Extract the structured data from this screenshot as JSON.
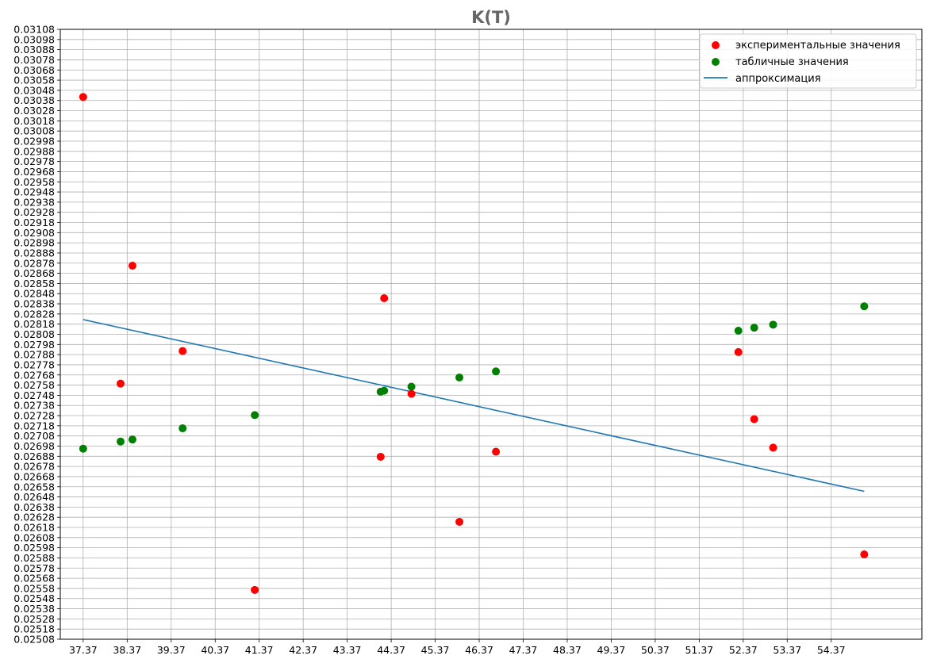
{
  "chart_data": {
    "type": "scatter",
    "title": "K(T)",
    "xlabel": "",
    "ylabel": "",
    "xlim": [
      36.85,
      56.43
    ],
    "ylim": [
      0.02508,
      0.03108
    ],
    "grid": true,
    "legend_position": "upper-right",
    "x_ticks": [
      "37.37",
      "38.37",
      "39.37",
      "40.37",
      "41.37",
      "42.37",
      "43.37",
      "44.37",
      "45.37",
      "46.37",
      "47.37",
      "48.37",
      "49.37",
      "50.37",
      "51.37",
      "52.37",
      "53.37",
      "54.37"
    ],
    "y_ticks": [
      "0.02508",
      "0.02518",
      "0.02528",
      "0.02538",
      "0.02548",
      "0.02558",
      "0.02568",
      "0.02578",
      "0.02588",
      "0.02598",
      "0.02608",
      "0.02618",
      "0.02628",
      "0.02638",
      "0.02648",
      "0.02658",
      "0.02668",
      "0.02678",
      "0.02688",
      "0.02698",
      "0.02708",
      "0.02718",
      "0.02728",
      "0.02738",
      "0.02748",
      "0.02758",
      "0.02768",
      "0.02778",
      "0.02788",
      "0.02798",
      "0.02808",
      "0.02818",
      "0.02828",
      "0.02838",
      "0.02848",
      "0.02858",
      "0.02868",
      "0.02878",
      "0.02888",
      "0.02898",
      "0.02908",
      "0.02918",
      "0.02928",
      "0.02938",
      "0.02948",
      "0.02958",
      "0.02968",
      "0.02978",
      "0.02988",
      "0.02998",
      "0.03008",
      "0.03018",
      "0.03028",
      "0.03038",
      "0.03048",
      "0.03058",
      "0.03068",
      "0.03078",
      "0.03088",
      "0.03098",
      "0.03108"
    ],
    "series": [
      {
        "name": "экспериментальные значения",
        "kind": "scatter",
        "color": "#ff0000",
        "points": [
          [
            37.37,
            0.030415
          ],
          [
            38.22,
            0.027595
          ],
          [
            38.49,
            0.028755
          ],
          [
            39.63,
            0.027915
          ],
          [
            41.27,
            0.025565
          ],
          [
            44.13,
            0.026875
          ],
          [
            44.21,
            0.028435
          ],
          [
            44.83,
            0.027495
          ],
          [
            45.92,
            0.026235
          ],
          [
            46.75,
            0.026925
          ],
          [
            52.26,
            0.027905
          ],
          [
            52.62,
            0.027245
          ],
          [
            53.05,
            0.026965
          ],
          [
            55.12,
            0.025915
          ]
        ]
      },
      {
        "name": "табличные значения",
        "kind": "scatter",
        "color": "#008000",
        "points": [
          [
            37.37,
            0.026955
          ],
          [
            38.22,
            0.027025
          ],
          [
            38.49,
            0.027045
          ],
          [
            39.63,
            0.027155
          ],
          [
            41.27,
            0.027285
          ],
          [
            44.13,
            0.027515
          ],
          [
            44.21,
            0.027525
          ],
          [
            44.83,
            0.027565
          ],
          [
            45.92,
            0.027655
          ],
          [
            46.75,
            0.027715
          ],
          [
            52.26,
            0.028115
          ],
          [
            52.62,
            0.028145
          ],
          [
            53.05,
            0.028175
          ],
          [
            55.12,
            0.028355
          ]
        ]
      },
      {
        "name": "аппроксимация",
        "kind": "line",
        "color": "#1f77b4",
        "points": [
          [
            37.37,
            0.028225
          ],
          [
            55.12,
            0.026535
          ]
        ]
      }
    ]
  }
}
